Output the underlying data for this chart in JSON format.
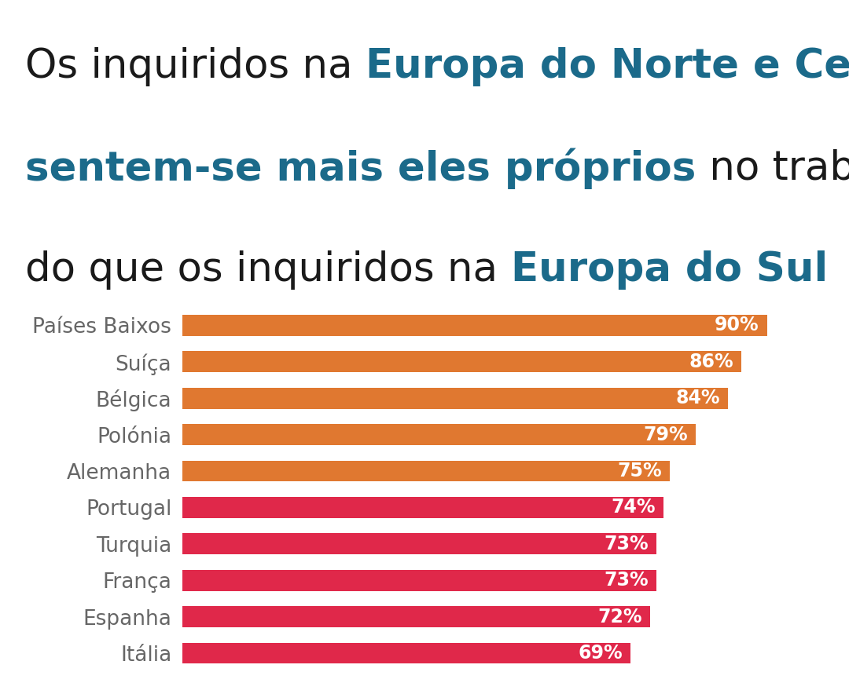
{
  "categories": [
    "Países Baixos",
    "Suíça",
    "Bélgica",
    "Polónia",
    "Alemanha",
    "Portugal",
    "Turquia",
    "França",
    "Espanha",
    "Itália"
  ],
  "values": [
    90,
    86,
    84,
    79,
    75,
    74,
    73,
    73,
    72,
    69
  ],
  "colors": [
    "#E07830",
    "#E07830",
    "#E07830",
    "#E07830",
    "#E07830",
    "#E0284A",
    "#E0284A",
    "#E0284A",
    "#E0284A",
    "#E0284A"
  ],
  "background_color": "#FFFFFF",
  "label_color": "#666666",
  "value_label_color": "#FFFFFF",
  "title_normal_color": "#1a1a1a",
  "title_bold_color": "#1B6A8A",
  "xlim_max": 100,
  "bar_height": 0.58,
  "label_fontsize": 19,
  "value_fontsize": 17,
  "title_fontsize": 37,
  "title_lines": [
    [
      {
        "text": "Os inquiridos na ",
        "bold": false
      },
      {
        "text": "Europa do Norte e Central",
        "bold": true
      }
    ],
    [
      {
        "text": "sentem-se mais eles próprios",
        "bold": true
      },
      {
        "text": " no trabalho",
        "bold": false
      }
    ],
    [
      {
        "text": "do que os inquiridos na ",
        "bold": false
      },
      {
        "text": "Europa do Sul",
        "bold": true
      }
    ]
  ]
}
